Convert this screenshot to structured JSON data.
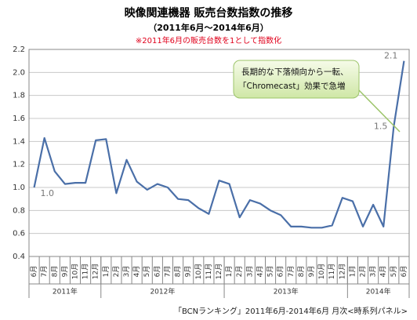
{
  "chart_data": {
    "type": "line",
    "title": "映像関連機器 販売台数指数の推移",
    "subtitle": "（2011年6月～2014年6月）",
    "note": "※2011年6月の販売台数を1として指数化",
    "annotations": [
      "長期的な下落傾向から一転、",
      "「Chromecast」効果で急増"
    ],
    "source": "「BCNランキング」2011年6月-2014年6月 月次<時系列パネル>",
    "categories": [
      "6月",
      "7月",
      "8月",
      "9月",
      "10月",
      "11月",
      "12月",
      "1月",
      "2月",
      "3月",
      "4月",
      "5月",
      "6月",
      "7月",
      "8月",
      "9月",
      "10月",
      "11月",
      "12月",
      "1月",
      "2月",
      "3月",
      "4月",
      "5月",
      "6月",
      "7月",
      "8月",
      "9月",
      "10月",
      "11月",
      "12月",
      "1月",
      "2月",
      "3月",
      "4月",
      "5月",
      "6月"
    ],
    "years": [
      {
        "label": "2011年",
        "months": 7
      },
      {
        "label": "2012年",
        "months": 12
      },
      {
        "label": "2013年",
        "months": 12
      },
      {
        "label": "2014年",
        "months": 6
      }
    ],
    "series": [
      {
        "name": "販売台数指数",
        "color": "#4a6fa8",
        "values": [
          1.0,
          1.43,
          1.14,
          1.03,
          1.04,
          1.04,
          1.41,
          1.42,
          0.95,
          1.24,
          1.05,
          0.98,
          1.03,
          1.0,
          0.9,
          0.89,
          0.82,
          0.77,
          1.06,
          1.03,
          0.74,
          0.89,
          0.86,
          0.8,
          0.76,
          0.66,
          0.66,
          0.65,
          0.65,
          0.67,
          0.91,
          0.88,
          0.66,
          0.85,
          0.66,
          1.53,
          2.1
        ],
        "value_labels": [
          "1.0",
          null,
          null,
          null,
          null,
          null,
          null,
          null,
          null,
          null,
          null,
          null,
          null,
          null,
          null,
          null,
          null,
          null,
          null,
          null,
          null,
          null,
          null,
          null,
          null,
          null,
          null,
          null,
          null,
          null,
          null,
          null,
          null,
          null,
          null,
          "1.5",
          "2.1"
        ]
      }
    ],
    "ylim": [
      0.4,
      2.2
    ],
    "yticks": [
      0.4,
      0.6,
      0.8,
      {
        "value": 1,
        "label": "1.0"
      },
      1.2,
      1.4,
      1.6,
      1.8,
      {
        "value": 2,
        "label": "2.0"
      },
      2.2
    ],
    "grid": true
  }
}
